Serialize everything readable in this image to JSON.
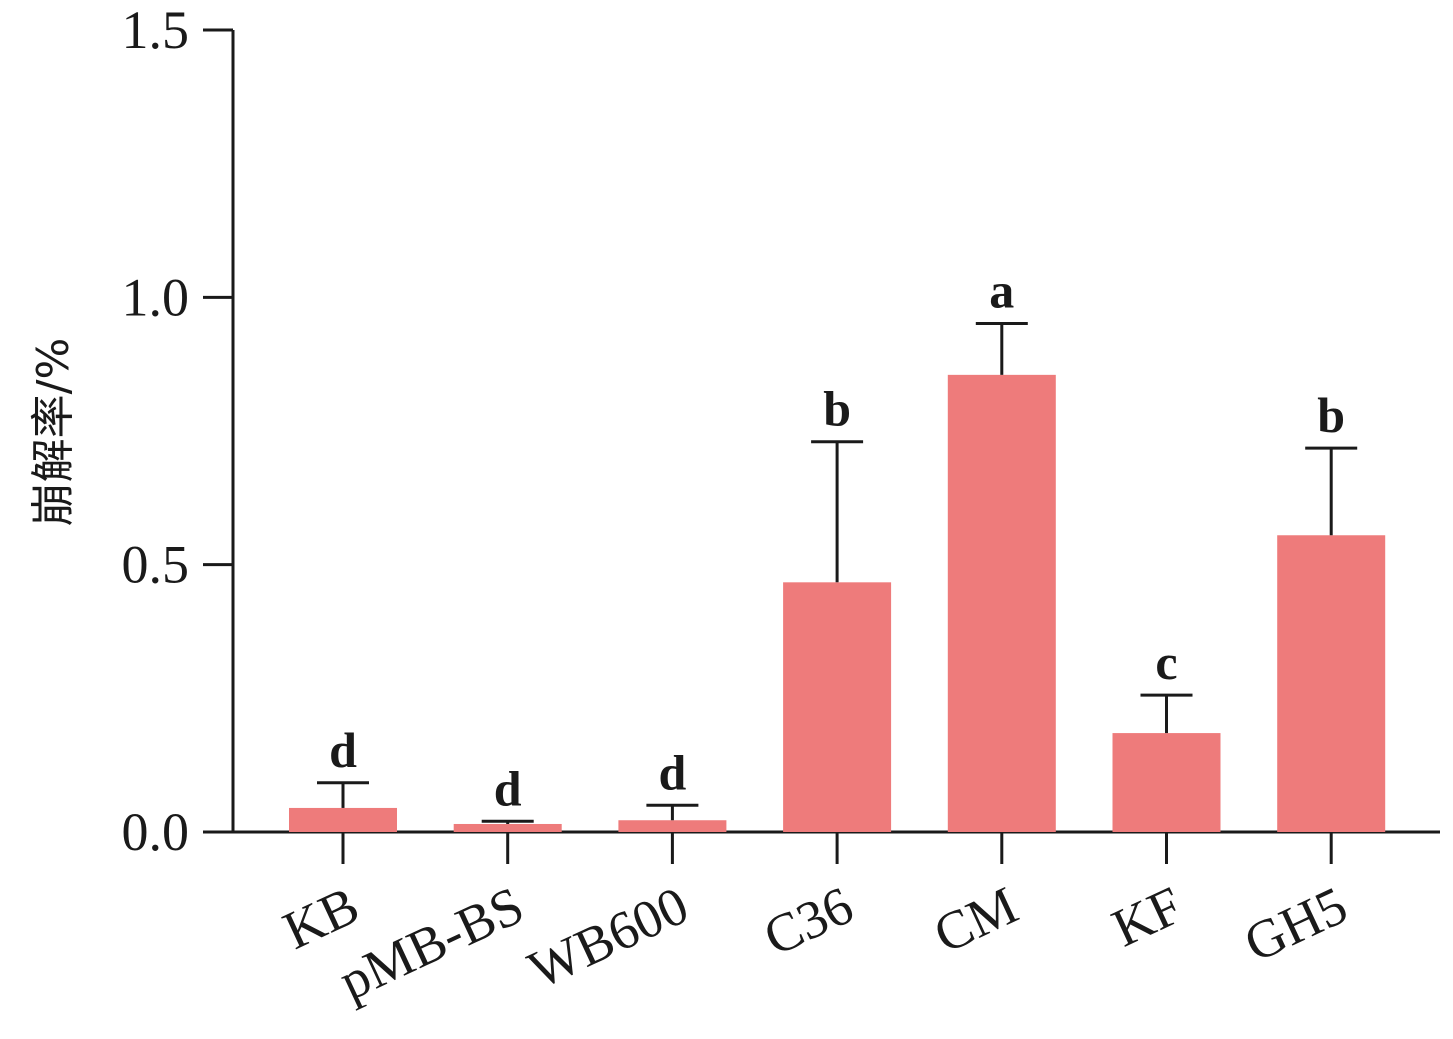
{
  "chart_data": {
    "type": "bar",
    "ylabel": "崩解率/%",
    "xlabel": "",
    "ylim": [
      0,
      1.5
    ],
    "yticks": [
      "0.0",
      "0.5",
      "1.0",
      "1.5"
    ],
    "categories": [
      "KB",
      "pMB-BS",
      "WB600",
      "C36",
      "CM",
      "KF",
      "GH5"
    ],
    "values": [
      0.045,
      0.015,
      0.022,
      0.467,
      0.855,
      0.185,
      0.555
    ],
    "errors": [
      0.047,
      0.005,
      0.028,
      0.263,
      0.096,
      0.071,
      0.163
    ],
    "significance": [
      "d",
      "d",
      "d",
      "b",
      "a",
      "c",
      "b"
    ],
    "bar_color": "#ee7b7b",
    "axis_color": "#1a1a1a",
    "grid": false
  }
}
